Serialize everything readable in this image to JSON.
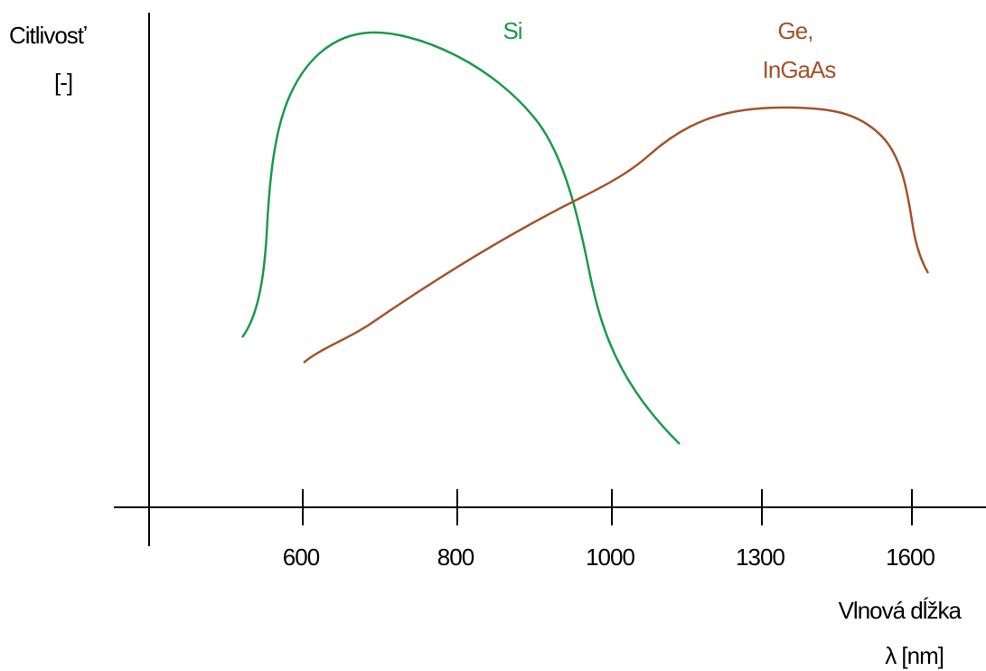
{
  "chart_data": {
    "type": "line",
    "title": "",
    "ylabel_lines": [
      "Citlivosť",
      "[-]"
    ],
    "xlabel_lines": [
      "Vlnová dĺžka",
      "λ   [nm]"
    ],
    "x_ticks": [
      "600",
      "800",
      "1000",
      "1300",
      "1600"
    ],
    "y_ticks": [],
    "grid": false,
    "series": [
      {
        "name_lines": [
          "Si"
        ],
        "color": "#1a9a4a",
        "points": [
          [
            "≈500",
            0.38
          ],
          [
            "600",
            0.8
          ],
          [
            "≈650",
            0.95
          ],
          [
            "≈720",
            1.0
          ],
          [
            "800",
            0.95
          ],
          [
            "≈880",
            0.85
          ],
          [
            "≈950",
            0.65
          ],
          [
            "1000",
            0.45
          ],
          [
            "≈1080",
            0.2
          ],
          [
            "≈1150",
            0.1
          ]
        ]
      },
      {
        "name_lines": [
          "Ge,",
          "InGaAs"
        ],
        "color": "#a5522a",
        "points": [
          [
            "600",
            0.33
          ],
          [
            "800",
            0.55
          ],
          [
            "1000",
            0.7
          ],
          [
            "1300",
            0.9
          ],
          [
            "1450",
            0.88
          ],
          [
            "1600",
            0.6
          ],
          [
            "≈1620",
            0.55
          ]
        ]
      }
    ]
  }
}
